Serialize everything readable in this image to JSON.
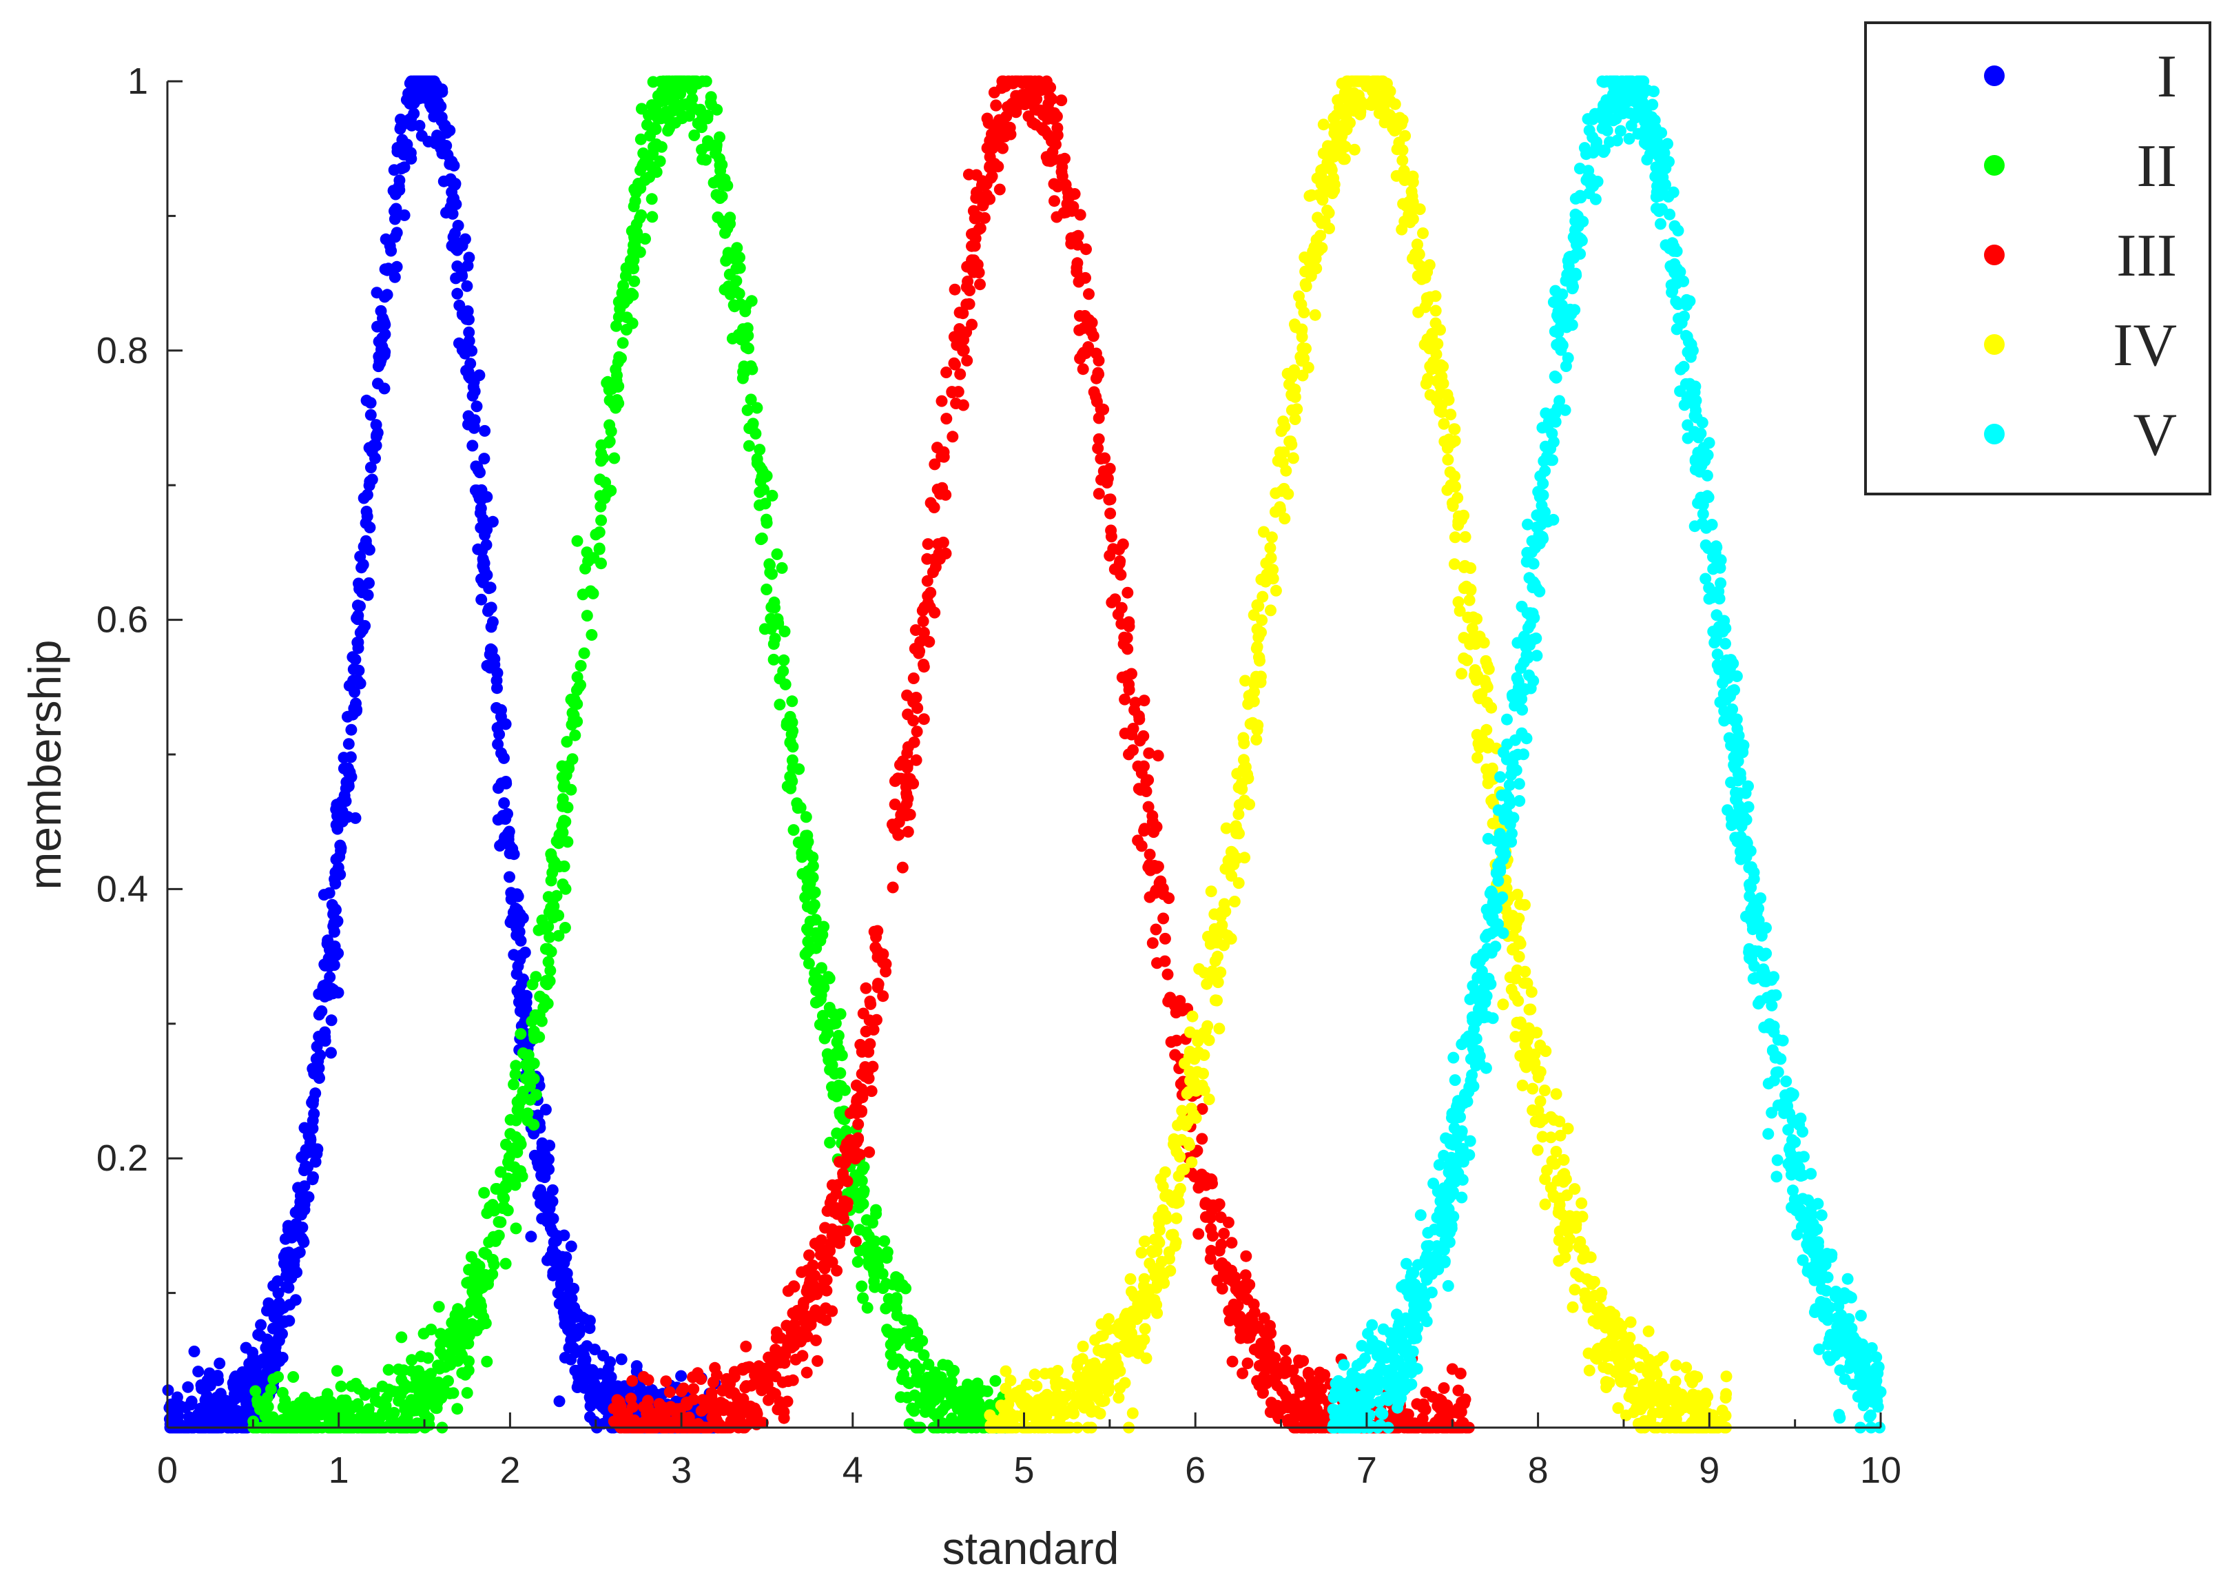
{
  "chart_data": {
    "type": "scatter",
    "xlabel": "standard",
    "ylabel": "membership",
    "xlim": [
      0,
      10
    ],
    "ylim": [
      0,
      1
    ],
    "xticks": [
      "0",
      "1",
      "2",
      "3",
      "4",
      "5",
      "6",
      "7",
      "8",
      "9",
      "10"
    ],
    "yticks": [
      "0.2",
      "0.4",
      "0.6",
      "0.8",
      "1"
    ],
    "grid": false,
    "legend_position": "top-right",
    "distribution": "gaussian-shaped membership curves with noisy scatter",
    "series": [
      {
        "name": "I",
        "color": "#0000ff",
        "peak_x": 1.5,
        "sigma": 0.38,
        "peak_y": 1,
        "x_range": [
          0.0,
          3.2
        ]
      },
      {
        "name": "II",
        "color": "#00ff00",
        "peak_x": 3.0,
        "sigma": 0.55,
        "peak_y": 1,
        "x_range": [
          0.5,
          4.9
        ]
      },
      {
        "name": "III",
        "color": "#ff0000",
        "peak_x": 5.0,
        "sigma": 0.57,
        "peak_y": 1,
        "x_range": [
          2.6,
          7.6
        ]
      },
      {
        "name": "IV",
        "color": "#ffff00",
        "peak_x": 7.0,
        "sigma": 0.6,
        "peak_y": 1,
        "x_range": [
          4.8,
          9.1
        ]
      },
      {
        "name": "V",
        "color": "#00ffff",
        "peak_x": 8.5,
        "sigma": 0.55,
        "peak_y": 1,
        "x_range": [
          6.8,
          10.0
        ]
      }
    ]
  }
}
